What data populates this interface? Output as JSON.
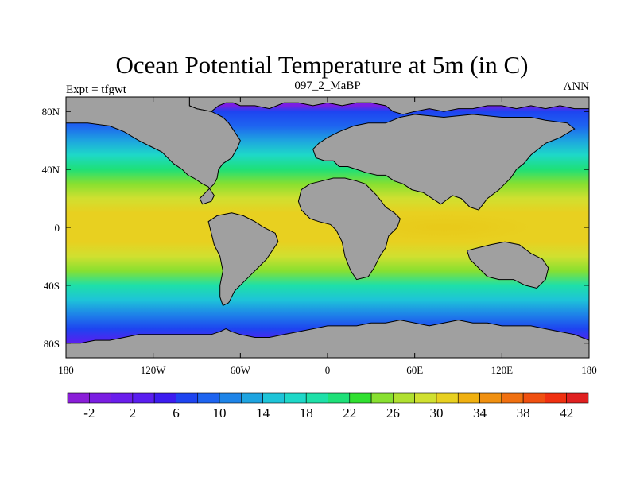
{
  "chart_data": {
    "type": "heatmap",
    "projection": "cylindrical-equidistant",
    "title": "Ocean Potential Temperature at 5m (in C)",
    "left_label": "Expt = tfgwt",
    "center_label": "097_2_MaBP",
    "right_label": "ANN",
    "units": "C",
    "xlim": [
      -180,
      180
    ],
    "ylim": [
      -90,
      90
    ],
    "x_ticks": [
      {
        "value": -180,
        "label": "180"
      },
      {
        "value": -120,
        "label": "120W"
      },
      {
        "value": -60,
        "label": "60W"
      },
      {
        "value": 0,
        "label": "0"
      },
      {
        "value": 60,
        "label": "60E"
      },
      {
        "value": 120,
        "label": "120E"
      },
      {
        "value": 180,
        "label": "180"
      }
    ],
    "y_ticks": [
      {
        "value": 80,
        "label": "80N"
      },
      {
        "value": 40,
        "label": "40N"
      },
      {
        "value": 0,
        "label": "0"
      },
      {
        "value": -40,
        "label": "40S"
      },
      {
        "value": -80,
        "label": "80S"
      }
    ],
    "colorbar": {
      "levels": [
        -4,
        -2,
        0,
        2,
        4,
        6,
        8,
        10,
        12,
        14,
        16,
        18,
        20,
        22,
        24,
        26,
        28,
        30,
        32,
        34,
        36,
        38,
        40,
        42,
        44
      ],
      "colors": [
        "#8a1ed8",
        "#7a1ee2",
        "#6a1eec",
        "#5a1ef0",
        "#3c1cf0",
        "#1e44f0",
        "#1e64f0",
        "#1e84e8",
        "#1ea4e0",
        "#1ec4d8",
        "#1ed8c8",
        "#1ee0a8",
        "#1ee078",
        "#30e030",
        "#88e030",
        "#b0e030",
        "#d0e030",
        "#e8d020",
        "#f0b010",
        "#f09010",
        "#f07010",
        "#f05010",
        "#f03010",
        "#e02020"
      ],
      "labels": [
        {
          "value": -2,
          "label": "-2"
        },
        {
          "value": 2,
          "label": "2"
        },
        {
          "value": 6,
          "label": "6"
        },
        {
          "value": 10,
          "label": "10"
        },
        {
          "value": 14,
          "label": "14"
        },
        {
          "value": 18,
          "label": "18"
        },
        {
          "value": 22,
          "label": "22"
        },
        {
          "value": 26,
          "label": "26"
        },
        {
          "value": 30,
          "label": "30"
        },
        {
          "value": 34,
          "label": "34"
        },
        {
          "value": 38,
          "label": "38"
        },
        {
          "value": 42,
          "label": "42"
        }
      ]
    },
    "zonal_mean_temperature": [
      {
        "lat": 90,
        "value": -2
      },
      {
        "lat": 84,
        "value": -1.5
      },
      {
        "lat": 80,
        "value": 6
      },
      {
        "lat": 70,
        "value": 9
      },
      {
        "lat": 60,
        "value": 13
      },
      {
        "lat": 50,
        "value": 17
      },
      {
        "lat": 40,
        "value": 21
      },
      {
        "lat": 30,
        "value": 25
      },
      {
        "lat": 20,
        "value": 28
      },
      {
        "lat": 10,
        "value": 30
      },
      {
        "lat": 0,
        "value": 31
      },
      {
        "lat": -10,
        "value": 30.5
      },
      {
        "lat": -20,
        "value": 28
      },
      {
        "lat": -30,
        "value": 24
      },
      {
        "lat": -40,
        "value": 19
      },
      {
        "lat": -50,
        "value": 14
      },
      {
        "lat": -60,
        "value": 10
      },
      {
        "lat": -70,
        "value": 6
      },
      {
        "lat": -80,
        "value": 2
      },
      {
        "lat": -90,
        "value": -1
      }
    ],
    "warm_pool_maximum": {
      "lon": 80,
      "lat": 0,
      "value": 33
    },
    "land_color": "#a0a0a0",
    "continents": [
      {
        "name": "north-america",
        "outline": [
          [
            -180,
            90
          ],
          [
            -95,
            90
          ],
          [
            -95,
            84
          ],
          [
            -90,
            82
          ],
          [
            -80,
            80
          ],
          [
            -72,
            76
          ],
          [
            -68,
            72
          ],
          [
            -64,
            66
          ],
          [
            -60,
            60
          ],
          [
            -62,
            55
          ],
          [
            -66,
            48
          ],
          [
            -72,
            44
          ],
          [
            -75,
            40
          ],
          [
            -76,
            34
          ],
          [
            -78,
            30
          ],
          [
            -82,
            26
          ],
          [
            -88,
            20
          ],
          [
            -86,
            16
          ],
          [
            -80,
            18
          ],
          [
            -78,
            22
          ],
          [
            -82,
            28
          ],
          [
            -86,
            30
          ],
          [
            -92,
            34
          ],
          [
            -96,
            36
          ],
          [
            -100,
            40
          ],
          [
            -106,
            44
          ],
          [
            -114,
            52
          ],
          [
            -122,
            56
          ],
          [
            -130,
            60
          ],
          [
            -140,
            66
          ],
          [
            -150,
            70
          ],
          [
            -165,
            72
          ],
          [
            -180,
            72
          ]
        ]
      },
      {
        "name": "east-asia",
        "outline": [
          [
            180,
            90
          ],
          [
            -95,
            90
          ],
          [
            -95,
            84
          ],
          [
            -90,
            82
          ],
          [
            -80,
            80
          ],
          [
            -75,
            84
          ],
          [
            -70,
            86
          ],
          [
            -65,
            86
          ],
          [
            -60,
            84
          ],
          [
            -50,
            84
          ],
          [
            -40,
            82
          ],
          [
            -30,
            86
          ],
          [
            -20,
            86
          ],
          [
            -10,
            84
          ],
          [
            0,
            86
          ],
          [
            10,
            84
          ],
          [
            20,
            86
          ],
          [
            30,
            86
          ],
          [
            40,
            84
          ],
          [
            45,
            80
          ],
          [
            52,
            78
          ],
          [
            60,
            80
          ],
          [
            70,
            82
          ],
          [
            80,
            80
          ],
          [
            90,
            82
          ],
          [
            100,
            82
          ],
          [
            110,
            84
          ],
          [
            120,
            84
          ],
          [
            130,
            82
          ],
          [
            140,
            84
          ],
          [
            150,
            82
          ],
          [
            160,
            84
          ],
          [
            170,
            82
          ],
          [
            180,
            82
          ]
        ]
      },
      {
        "name": "eurasia",
        "outline": [
          [
            50,
            76
          ],
          [
            60,
            78
          ],
          [
            80,
            76
          ],
          [
            100,
            78
          ],
          [
            120,
            76
          ],
          [
            140,
            76
          ],
          [
            150,
            74
          ],
          [
            165,
            72
          ],
          [
            170,
            68
          ],
          [
            160,
            62
          ],
          [
            150,
            58
          ],
          [
            145,
            54
          ],
          [
            140,
            50
          ],
          [
            135,
            44
          ],
          [
            130,
            40
          ],
          [
            126,
            34
          ],
          [
            122,
            30
          ],
          [
            118,
            26
          ],
          [
            110,
            20
          ],
          [
            104,
            12
          ],
          [
            98,
            14
          ],
          [
            92,
            20
          ],
          [
            86,
            22
          ],
          [
            78,
            16
          ],
          [
            72,
            20
          ],
          [
            66,
            24
          ],
          [
            58,
            26
          ],
          [
            52,
            30
          ],
          [
            46,
            32
          ],
          [
            40,
            36
          ],
          [
            34,
            36
          ],
          [
            26,
            38
          ],
          [
            20,
            40
          ],
          [
            14,
            42
          ],
          [
            8,
            42
          ],
          [
            4,
            46
          ],
          [
            -2,
            46
          ],
          [
            -8,
            48
          ],
          [
            -10,
            54
          ],
          [
            -6,
            58
          ],
          [
            0,
            62
          ],
          [
            8,
            66
          ],
          [
            18,
            70
          ],
          [
            28,
            72
          ],
          [
            40,
            72
          ]
        ]
      },
      {
        "name": "africa",
        "outline": [
          [
            -18,
            26
          ],
          [
            -12,
            30
          ],
          [
            -4,
            32
          ],
          [
            4,
            34
          ],
          [
            12,
            34
          ],
          [
            20,
            32
          ],
          [
            26,
            30
          ],
          [
            30,
            26
          ],
          [
            34,
            22
          ],
          [
            40,
            14
          ],
          [
            46,
            10
          ],
          [
            50,
            6
          ],
          [
            48,
            0
          ],
          [
            42,
            -6
          ],
          [
            40,
            -14
          ],
          [
            36,
            -20
          ],
          [
            32,
            -28
          ],
          [
            28,
            -34
          ],
          [
            20,
            -36
          ],
          [
            16,
            -30
          ],
          [
            12,
            -20
          ],
          [
            10,
            -10
          ],
          [
            6,
            -2
          ],
          [
            2,
            2
          ],
          [
            -6,
            4
          ],
          [
            -12,
            6
          ],
          [
            -18,
            12
          ],
          [
            -20,
            18
          ]
        ]
      },
      {
        "name": "south-america",
        "outline": [
          [
            -82,
            4
          ],
          [
            -76,
            8
          ],
          [
            -66,
            10
          ],
          [
            -58,
            8
          ],
          [
            -50,
            4
          ],
          [
            -44,
            0
          ],
          [
            -36,
            -4
          ],
          [
            -34,
            -10
          ],
          [
            -38,
            -16
          ],
          [
            -42,
            -22
          ],
          [
            -46,
            -26
          ],
          [
            -52,
            -32
          ],
          [
            -58,
            -38
          ],
          [
            -64,
            -44
          ],
          [
            -68,
            -52
          ],
          [
            -72,
            -54
          ],
          [
            -74,
            -48
          ],
          [
            -74,
            -40
          ],
          [
            -72,
            -30
          ],
          [
            -74,
            -20
          ],
          [
            -78,
            -12
          ],
          [
            -80,
            -4
          ]
        ]
      },
      {
        "name": "australia",
        "outline": [
          [
            96,
            -16
          ],
          [
            104,
            -14
          ],
          [
            112,
            -12
          ],
          [
            122,
            -10
          ],
          [
            132,
            -12
          ],
          [
            140,
            -18
          ],
          [
            148,
            -22
          ],
          [
            152,
            -28
          ],
          [
            150,
            -36
          ],
          [
            144,
            -42
          ],
          [
            136,
            -40
          ],
          [
            128,
            -36
          ],
          [
            118,
            -36
          ],
          [
            110,
            -34
          ],
          [
            104,
            -28
          ],
          [
            98,
            -22
          ]
        ]
      },
      {
        "name": "antarctica",
        "outline": [
          [
            -180,
            -90
          ],
          [
            180,
            -90
          ],
          [
            180,
            -78
          ],
          [
            170,
            -74
          ],
          [
            160,
            -72
          ],
          [
            150,
            -70
          ],
          [
            140,
            -68
          ],
          [
            130,
            -68
          ],
          [
            120,
            -68
          ],
          [
            110,
            -66
          ],
          [
            100,
            -66
          ],
          [
            90,
            -64
          ],
          [
            80,
            -66
          ],
          [
            70,
            -68
          ],
          [
            60,
            -66
          ],
          [
            50,
            -64
          ],
          [
            40,
            -66
          ],
          [
            30,
            -66
          ],
          [
            20,
            -68
          ],
          [
            10,
            -68
          ],
          [
            0,
            -68
          ],
          [
            -10,
            -70
          ],
          [
            -20,
            -72
          ],
          [
            -30,
            -74
          ],
          [
            -40,
            -76
          ],
          [
            -50,
            -76
          ],
          [
            -60,
            -74
          ],
          [
            -66,
            -72
          ],
          [
            -70,
            -70
          ],
          [
            -74,
            -72
          ],
          [
            -80,
            -74
          ],
          [
            -90,
            -74
          ],
          [
            -100,
            -74
          ],
          [
            -110,
            -74
          ],
          [
            -120,
            -74
          ],
          [
            -130,
            -74
          ],
          [
            -140,
            -76
          ],
          [
            -150,
            -78
          ],
          [
            -160,
            -78
          ],
          [
            -170,
            -80
          ],
          [
            -180,
            -80
          ]
        ]
      }
    ]
  }
}
